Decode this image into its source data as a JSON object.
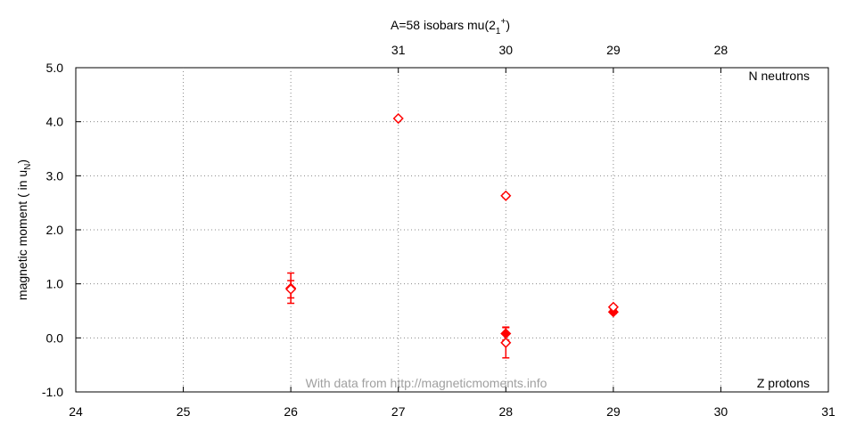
{
  "chart_data": {
    "type": "scatter",
    "title": {
      "text": "A=58 isobars mu(2",
      "sub": "1",
      "sup": "+",
      "end": ")"
    },
    "ylabel": {
      "text": "magnetic moment ( in u",
      "sub": "N",
      "end": ")"
    },
    "annotations": [
      "N neutrons",
      "Z protons",
      "With data from http://magneticmoments.info"
    ],
    "xlim": [
      24,
      31
    ],
    "xticks": [
      24,
      25,
      26,
      27,
      28,
      29,
      30,
      31
    ],
    "x2lim": [
      34,
      27
    ],
    "x2ticks": [
      31,
      30,
      29,
      28
    ],
    "ylim": [
      -1,
      5
    ],
    "yticks": [
      {
        "value": -1,
        "label": "-1.0"
      },
      {
        "value": 0,
        "label": "0.0"
      },
      {
        "value": 1,
        "label": "1.0"
      },
      {
        "value": 2,
        "label": "2.0"
      },
      {
        "value": 3,
        "label": "3.0"
      },
      {
        "value": 4,
        "label": "4.0"
      },
      {
        "value": 5,
        "label": "5.0"
      }
    ],
    "grid": true,
    "series": [
      {
        "color": "#ff0000",
        "marker": "filled",
        "x": [
          26,
          28,
          29
        ],
        "values": [
          0.92,
          0.08,
          0.48
        ],
        "errors": [
          0.28,
          0.12,
          0.03
        ]
      },
      {
        "color": "#ff0000",
        "marker": "open",
        "x": [
          26,
          27,
          28,
          28,
          29
        ],
        "values": [
          0.9,
          4.06,
          2.63,
          -0.09,
          0.57
        ],
        "errors": [
          0.16,
          0.02,
          0.03,
          0.28,
          0.03
        ]
      }
    ]
  }
}
